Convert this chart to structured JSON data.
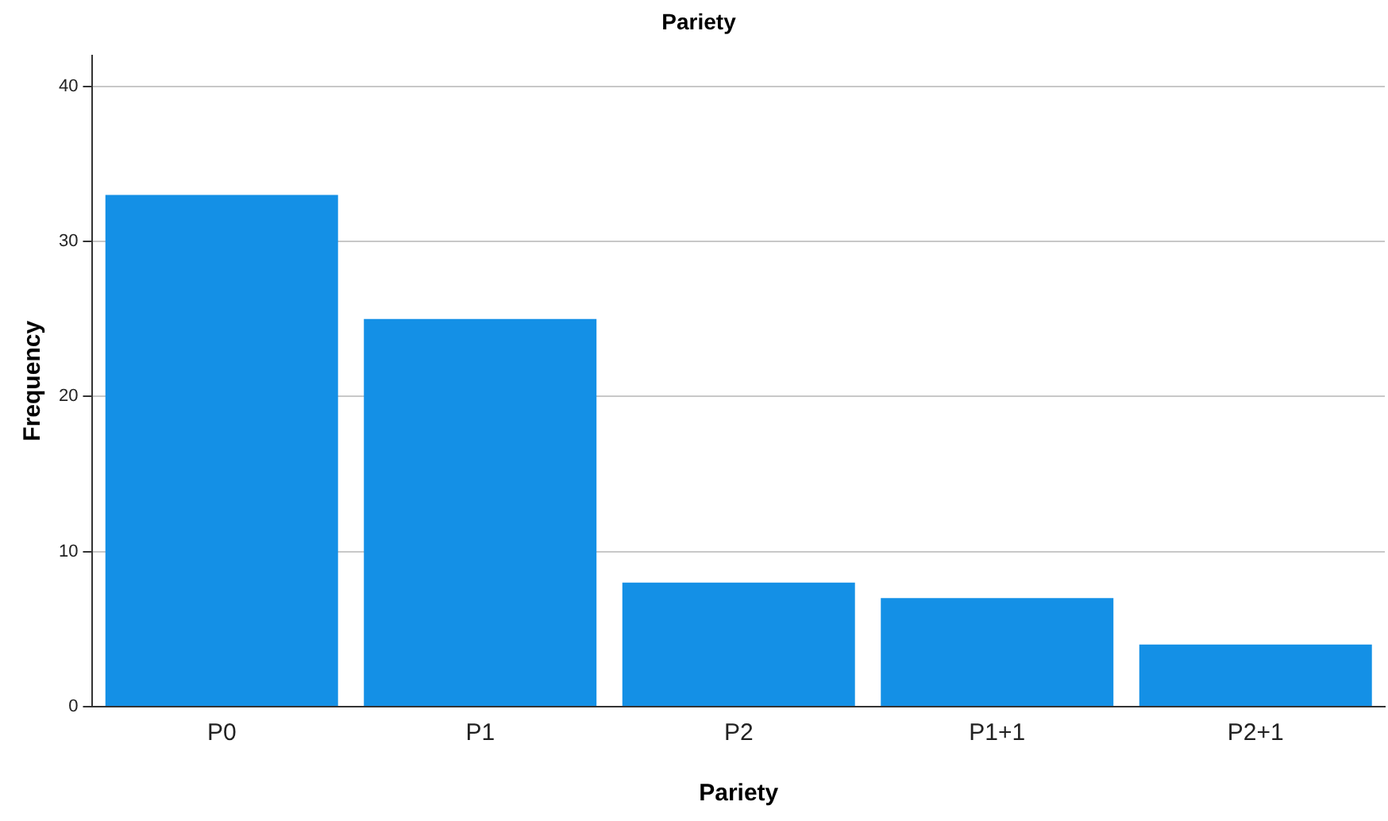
{
  "chart_data": {
    "type": "bar",
    "title": "Pariety",
    "xlabel": "Pariety",
    "ylabel": "Frequency",
    "categories": [
      "P0",
      "P1",
      "P2",
      "P1+1",
      "P2+1"
    ],
    "values": [
      33,
      25,
      8,
      7,
      4
    ],
    "color": "#1490e6",
    "ylim": [
      0,
      42
    ],
    "yticks": [
      0,
      10,
      20,
      30,
      40
    ],
    "grid": "y",
    "legend": false
  }
}
